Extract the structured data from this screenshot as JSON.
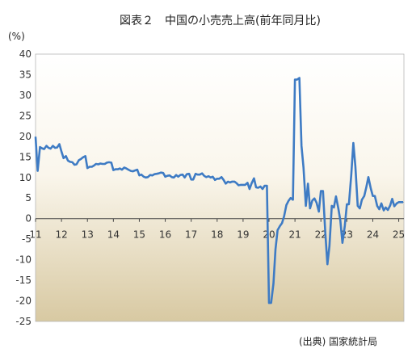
{
  "chart_data": {
    "type": "line",
    "title": "図表２　中国の小売売上高(前年同月比)",
    "ylabel": "(%)",
    "source": "(出典) 国家統計局",
    "ylim": [
      -25,
      40
    ],
    "yticks": [
      40,
      35,
      30,
      25,
      20,
      15,
      10,
      5,
      0,
      -5,
      -10,
      -15,
      -20,
      -25
    ],
    "xlim": [
      2011.0,
      2025.2
    ],
    "xticks": [
      "11",
      "12",
      "13",
      "14",
      "15",
      "16",
      "17",
      "18",
      "19",
      "20",
      "21",
      "22",
      "23",
      "24",
      "25"
    ],
    "xtick_years": [
      2011,
      2012,
      2013,
      2014,
      2015,
      2016,
      2017,
      2018,
      2019,
      2020,
      2021,
      2022,
      2023,
      2024,
      2025
    ],
    "grid": false,
    "series": [
      {
        "color": "#3e7bc4",
        "x": [
          2011.0,
          2011.08,
          2011.17,
          2011.25,
          2011.33,
          2011.42,
          2011.5,
          2011.58,
          2011.67,
          2011.75,
          2011.83,
          2011.92,
          2012.0,
          2012.08,
          2012.17,
          2012.25,
          2012.33,
          2012.42,
          2012.5,
          2012.58,
          2012.67,
          2012.75,
          2012.83,
          2012.92,
          2013.0,
          2013.08,
          2013.17,
          2013.25,
          2013.33,
          2013.42,
          2013.5,
          2013.58,
          2013.67,
          2013.75,
          2013.83,
          2013.92,
          2014.0,
          2014.08,
          2014.17,
          2014.25,
          2014.33,
          2014.42,
          2014.5,
          2014.58,
          2014.67,
          2014.75,
          2014.83,
          2014.92,
          2015.0,
          2015.08,
          2015.17,
          2015.25,
          2015.33,
          2015.42,
          2015.5,
          2015.58,
          2015.67,
          2015.75,
          2015.83,
          2015.92,
          2016.0,
          2016.08,
          2016.17,
          2016.25,
          2016.33,
          2016.42,
          2016.5,
          2016.58,
          2016.67,
          2016.75,
          2016.83,
          2016.92,
          2017.0,
          2017.08,
          2017.17,
          2017.25,
          2017.33,
          2017.42,
          2017.5,
          2017.58,
          2017.67,
          2017.75,
          2017.83,
          2017.92,
          2018.0,
          2018.08,
          2018.17,
          2018.25,
          2018.33,
          2018.42,
          2018.5,
          2018.58,
          2018.67,
          2018.75,
          2018.83,
          2018.92,
          2019.0,
          2019.08,
          2019.17,
          2019.25,
          2019.33,
          2019.42,
          2019.5,
          2019.58,
          2019.67,
          2019.75,
          2019.83,
          2019.92,
          2020.0,
          2020.08,
          2020.17,
          2020.25,
          2020.33,
          2020.42,
          2020.5,
          2020.58,
          2020.67,
          2020.75,
          2020.83,
          2020.92,
          2021.0,
          2021.08,
          2021.17,
          2021.25,
          2021.33,
          2021.42,
          2021.5,
          2021.58,
          2021.67,
          2021.75,
          2021.83,
          2021.92,
          2022.0,
          2022.08,
          2022.17,
          2022.25,
          2022.33,
          2022.42,
          2022.5,
          2022.58,
          2022.67,
          2022.75,
          2022.83,
          2022.92,
          2023.0,
          2023.08,
          2023.17,
          2023.25,
          2023.33,
          2023.42,
          2023.5,
          2023.58,
          2023.67,
          2023.75,
          2023.83,
          2023.92,
          2024.0,
          2024.08,
          2024.17,
          2024.25,
          2024.33,
          2024.42,
          2024.5,
          2024.58,
          2024.67,
          2024.75,
          2024.83,
          2024.92,
          2025.0,
          2025.08,
          2025.17
        ],
        "values": [
          19.9,
          11.6,
          17.4,
          17.1,
          16.9,
          17.7,
          17.2,
          17.0,
          17.7,
          17.2,
          17.3,
          18.1,
          16.3,
          14.7,
          15.2,
          14.1,
          13.8,
          13.7,
          13.1,
          13.2,
          14.2,
          14.5,
          14.9,
          15.2,
          12.3,
          12.6,
          12.6,
          12.9,
          13.3,
          13.2,
          13.4,
          13.3,
          13.3,
          13.6,
          13.7,
          13.6,
          11.8,
          12.0,
          12.0,
          12.2,
          11.9,
          12.4,
          12.2,
          11.9,
          11.6,
          11.5,
          11.7,
          11.9,
          10.5,
          10.7,
          10.2,
          10.0,
          10.1,
          10.6,
          10.5,
          10.8,
          10.9,
          11.0,
          11.2,
          11.1,
          10.2,
          10.4,
          10.5,
          10.1,
          10.0,
          10.6,
          10.2,
          10.6,
          10.7,
          10.0,
          10.8,
          10.9,
          9.5,
          9.5,
          10.9,
          10.7,
          10.7,
          11.0,
          10.4,
          10.1,
          10.3,
          10.0,
          10.2,
          9.4,
          9.7,
          9.7,
          10.1,
          9.4,
          8.5,
          9.0,
          8.8,
          9.0,
          9.0,
          8.6,
          8.1,
          8.2,
          8.2,
          8.2,
          8.7,
          7.2,
          8.6,
          9.8,
          7.6,
          7.5,
          7.8,
          7.2,
          8.0,
          8.0,
          -20.5,
          -20.5,
          -15.8,
          -7.5,
          -2.8,
          -1.8,
          -1.1,
          0.5,
          3.3,
          4.3,
          5.0,
          4.6,
          33.8,
          33.8,
          34.2,
          17.7,
          12.4,
          3.1,
          8.5,
          2.5,
          4.4,
          4.9,
          3.9,
          1.7,
          6.7,
          6.7,
          -3.5,
          -11.1,
          -6.7,
          3.1,
          2.7,
          5.4,
          2.5,
          -0.5,
          -5.9,
          -1.8,
          3.5,
          3.5,
          10.6,
          18.4,
          12.7,
          3.1,
          2.5,
          4.6,
          5.5,
          7.6,
          10.1,
          7.4,
          5.5,
          5.5,
          3.1,
          2.3,
          3.7,
          2.0,
          2.7,
          2.1,
          3.2,
          4.8,
          3.0,
          3.7,
          4.0,
          4.0,
          4.0
        ]
      }
    ]
  }
}
